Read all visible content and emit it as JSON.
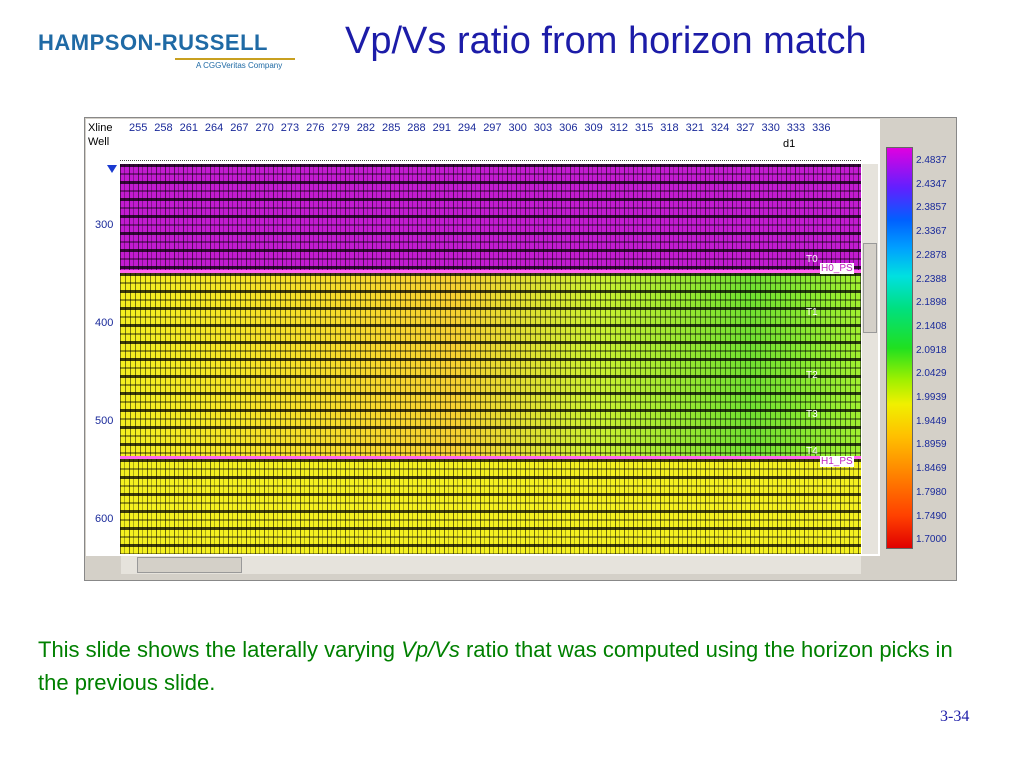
{
  "header": {
    "logo": "HAMPSON-RUSSELL",
    "logo_sub": "A CGGVeritas Company",
    "title": "Vp/Vs ratio from horizon match"
  },
  "screenshot": {
    "row_labels": [
      "Xline",
      "Well"
    ],
    "xlines": [
      255,
      258,
      261,
      264,
      267,
      270,
      273,
      276,
      279,
      282,
      285,
      288,
      291,
      294,
      297,
      300,
      303,
      306,
      309,
      312,
      315,
      318,
      321,
      324,
      327,
      330,
      333,
      336
    ],
    "well": "d1",
    "times": [
      300,
      400,
      500,
      600
    ],
    "horizons": [
      "T0",
      "H0_PS",
      "T1",
      "T2",
      "T3",
      "T4",
      "H1_PS"
    ],
    "colorbar": [
      "2.4837",
      "2.4347",
      "2.3857",
      "2.3367",
      "2.2878",
      "2.2388",
      "2.1898",
      "2.1408",
      "2.0918",
      "2.0429",
      "1.9939",
      "1.9449",
      "1.8959",
      "1.8469",
      "1.7980",
      "1.7490",
      "1.7000"
    ]
  },
  "caption": {
    "before": "This slide shows the laterally varying ",
    "italic": "Vp/Vs",
    "after": " ratio that was computed using the horizon picks in the previous slide."
  },
  "page_number": "3-34"
}
